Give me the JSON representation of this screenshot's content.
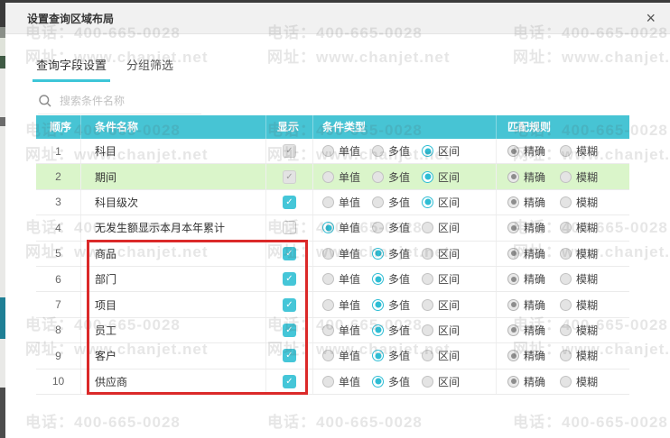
{
  "dialog": {
    "title": "设置查询区域布局",
    "close_glyph": "×",
    "tabs": [
      {
        "label": "查询字段设置",
        "active": true
      },
      {
        "label": "分组筛选",
        "active": false
      }
    ],
    "search": {
      "placeholder": "搜索条件名称"
    }
  },
  "table": {
    "columns": [
      "顺序",
      "条件名称",
      "显示",
      "条件类型",
      "匹配规则"
    ],
    "type_options": [
      "单值",
      "多值",
      "区间"
    ],
    "match_options": [
      "精确",
      "模糊"
    ],
    "rows": [
      {
        "order": "1",
        "name": "科目",
        "show": "checked-disabled",
        "type": "区间",
        "match": "精确",
        "highlight": false
      },
      {
        "order": "2",
        "name": "期间",
        "show": "checked-disabled",
        "type": "区间",
        "match": "精确",
        "highlight": true
      },
      {
        "order": "3",
        "name": "科目级次",
        "show": "checked",
        "type": "区间",
        "match": "精确",
        "highlight": false
      },
      {
        "order": "4",
        "name": "无发生额显示本月本年累计",
        "show": "unchecked",
        "type": "单值",
        "match": "精确",
        "highlight": false
      },
      {
        "order": "5",
        "name": "商品",
        "show": "checked",
        "type": "多值",
        "match": "精确",
        "highlight": false
      },
      {
        "order": "6",
        "name": "部门",
        "show": "checked",
        "type": "多值",
        "match": "精确",
        "highlight": false
      },
      {
        "order": "7",
        "name": "项目",
        "show": "checked",
        "type": "多值",
        "match": "精确",
        "highlight": false
      },
      {
        "order": "8",
        "name": "员工",
        "show": "checked",
        "type": "多值",
        "match": "精确",
        "highlight": false
      },
      {
        "order": "9",
        "name": "客户",
        "show": "checked",
        "type": "多值",
        "match": "精确",
        "highlight": false
      },
      {
        "order": "10",
        "name": "供应商",
        "show": "checked",
        "type": "多值",
        "match": "精确",
        "highlight": false
      }
    ],
    "check_glyph": "✓"
  },
  "watermark": {
    "line1": "电话：400-665-0028",
    "line2": "网址：www.chanjet.net"
  },
  "colors": {
    "accent_teal": "#47c4d4",
    "checkbox_cyan": "#45c6d8",
    "radio_cyan": "#2fbdd4",
    "row_highlight_green": "#daf5ca",
    "annotation_red": "#db2929",
    "titlebar_gray": "#f1f1f1"
  }
}
